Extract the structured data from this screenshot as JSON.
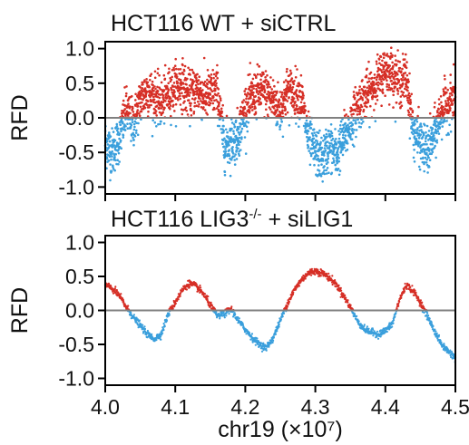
{
  "chart_data": [
    {
      "type": "scatter",
      "title": "HCT116 WT + siCTRL",
      "ylabel": "RFD",
      "xlabel": "",
      "xlim": [
        4.0,
        4.5
      ],
      "ylim": [
        -1.1,
        1.1
      ],
      "xticks": [
        4.0,
        4.1,
        4.2,
        4.3,
        4.4,
        4.5
      ],
      "xtick_labels": [
        "",
        "",
        "",
        "",
        "",
        ""
      ],
      "yticks": [
        1.0,
        0.5,
        0.0,
        -0.5,
        -1.0
      ],
      "ytick_labels": [
        "1.0",
        "0.5",
        "0.0",
        "-0.5",
        "-1.0"
      ],
      "reference_line": 0.0,
      "grid": false,
      "colors": {
        "positive": "#d62f26",
        "negative": "#3a9fdc",
        "reference_line": "#808080"
      },
      "series": [
        {
          "values_note": "dense noisy RFD points; positive points red, negative points blue",
          "x": [
            4.0,
            4.01,
            4.02,
            4.03,
            4.04,
            4.05,
            4.06,
            4.07,
            4.08,
            4.09,
            4.1,
            4.11,
            4.12,
            4.13,
            4.14,
            4.15,
            4.16,
            4.17,
            4.18,
            4.19,
            4.2,
            4.21,
            4.22,
            4.23,
            4.24,
            4.25,
            4.26,
            4.27,
            4.28,
            4.29,
            4.3,
            4.31,
            4.32,
            4.33,
            4.34,
            4.35,
            4.36,
            4.37,
            4.38,
            4.39,
            4.4,
            4.41,
            4.42,
            4.43,
            4.44,
            4.45,
            4.46,
            4.47,
            4.48,
            4.49,
            4.5
          ],
          "y": [
            -0.35,
            -0.5,
            -0.3,
            0.1,
            -0.1,
            0.25,
            0.4,
            0.3,
            0.2,
            0.35,
            0.45,
            0.5,
            0.3,
            0.45,
            0.3,
            0.35,
            0.4,
            -0.4,
            -0.35,
            -0.25,
            0.15,
            0.3,
            0.4,
            0.35,
            0.25,
            0.1,
            0.4,
            0.35,
            0.3,
            -0.3,
            -0.5,
            -0.6,
            -0.4,
            -0.55,
            -0.3,
            -0.1,
            0.15,
            0.3,
            0.4,
            0.55,
            0.7,
            0.65,
            0.5,
            0.6,
            -0.2,
            -0.35,
            -0.5,
            -0.25,
            0.1,
            0.2,
            0.3
          ]
        }
      ]
    },
    {
      "type": "scatter",
      "title": "HCT116 LIG3-/- + siLIG1",
      "ylabel": "RFD",
      "xlabel": "chr19 (×10⁷)",
      "xlim": [
        4.0,
        4.5
      ],
      "ylim": [
        -1.1,
        1.1
      ],
      "xticks": [
        4.0,
        4.1,
        4.2,
        4.3,
        4.4,
        4.5
      ],
      "xtick_labels": [
        "4.0",
        "4.1",
        "4.2",
        "4.3",
        "4.4",
        "4.5"
      ],
      "yticks": [
        1.0,
        0.5,
        0.0,
        -0.5,
        -1.0
      ],
      "ytick_labels": [
        "1.0",
        "0.5",
        "0.0",
        "-0.5",
        "-1.0"
      ],
      "reference_line": 0.0,
      "grid": false,
      "colors": {
        "positive": "#d62f26",
        "negative": "#3a9fdc",
        "reference_line": "#808080"
      },
      "series": [
        {
          "values_note": "smooth RFD trace; positive points red, negative points blue",
          "x": [
            4.0,
            4.01,
            4.02,
            4.03,
            4.04,
            4.05,
            4.06,
            4.07,
            4.08,
            4.09,
            4.1,
            4.11,
            4.12,
            4.13,
            4.14,
            4.15,
            4.16,
            4.17,
            4.18,
            4.19,
            4.2,
            4.21,
            4.22,
            4.23,
            4.24,
            4.25,
            4.26,
            4.27,
            4.28,
            4.29,
            4.3,
            4.31,
            4.32,
            4.33,
            4.34,
            4.35,
            4.36,
            4.37,
            4.38,
            4.39,
            4.4,
            4.41,
            4.42,
            4.43,
            4.44,
            4.45,
            4.46,
            4.47,
            4.48,
            4.49,
            4.5
          ],
          "y": [
            0.38,
            0.32,
            0.22,
            0.05,
            -0.1,
            -0.22,
            -0.35,
            -0.42,
            -0.35,
            -0.05,
            0.12,
            0.3,
            0.4,
            0.35,
            0.25,
            0.08,
            -0.08,
            -0.05,
            0.02,
            -0.15,
            -0.28,
            -0.4,
            -0.5,
            -0.55,
            -0.4,
            -0.15,
            0.1,
            0.3,
            0.45,
            0.55,
            0.58,
            0.55,
            0.48,
            0.38,
            0.22,
            0.05,
            -0.15,
            -0.28,
            -0.32,
            -0.35,
            -0.3,
            -0.2,
            0.15,
            0.38,
            0.28,
            0.12,
            -0.08,
            -0.3,
            -0.5,
            -0.6,
            -0.7
          ]
        }
      ]
    }
  ]
}
